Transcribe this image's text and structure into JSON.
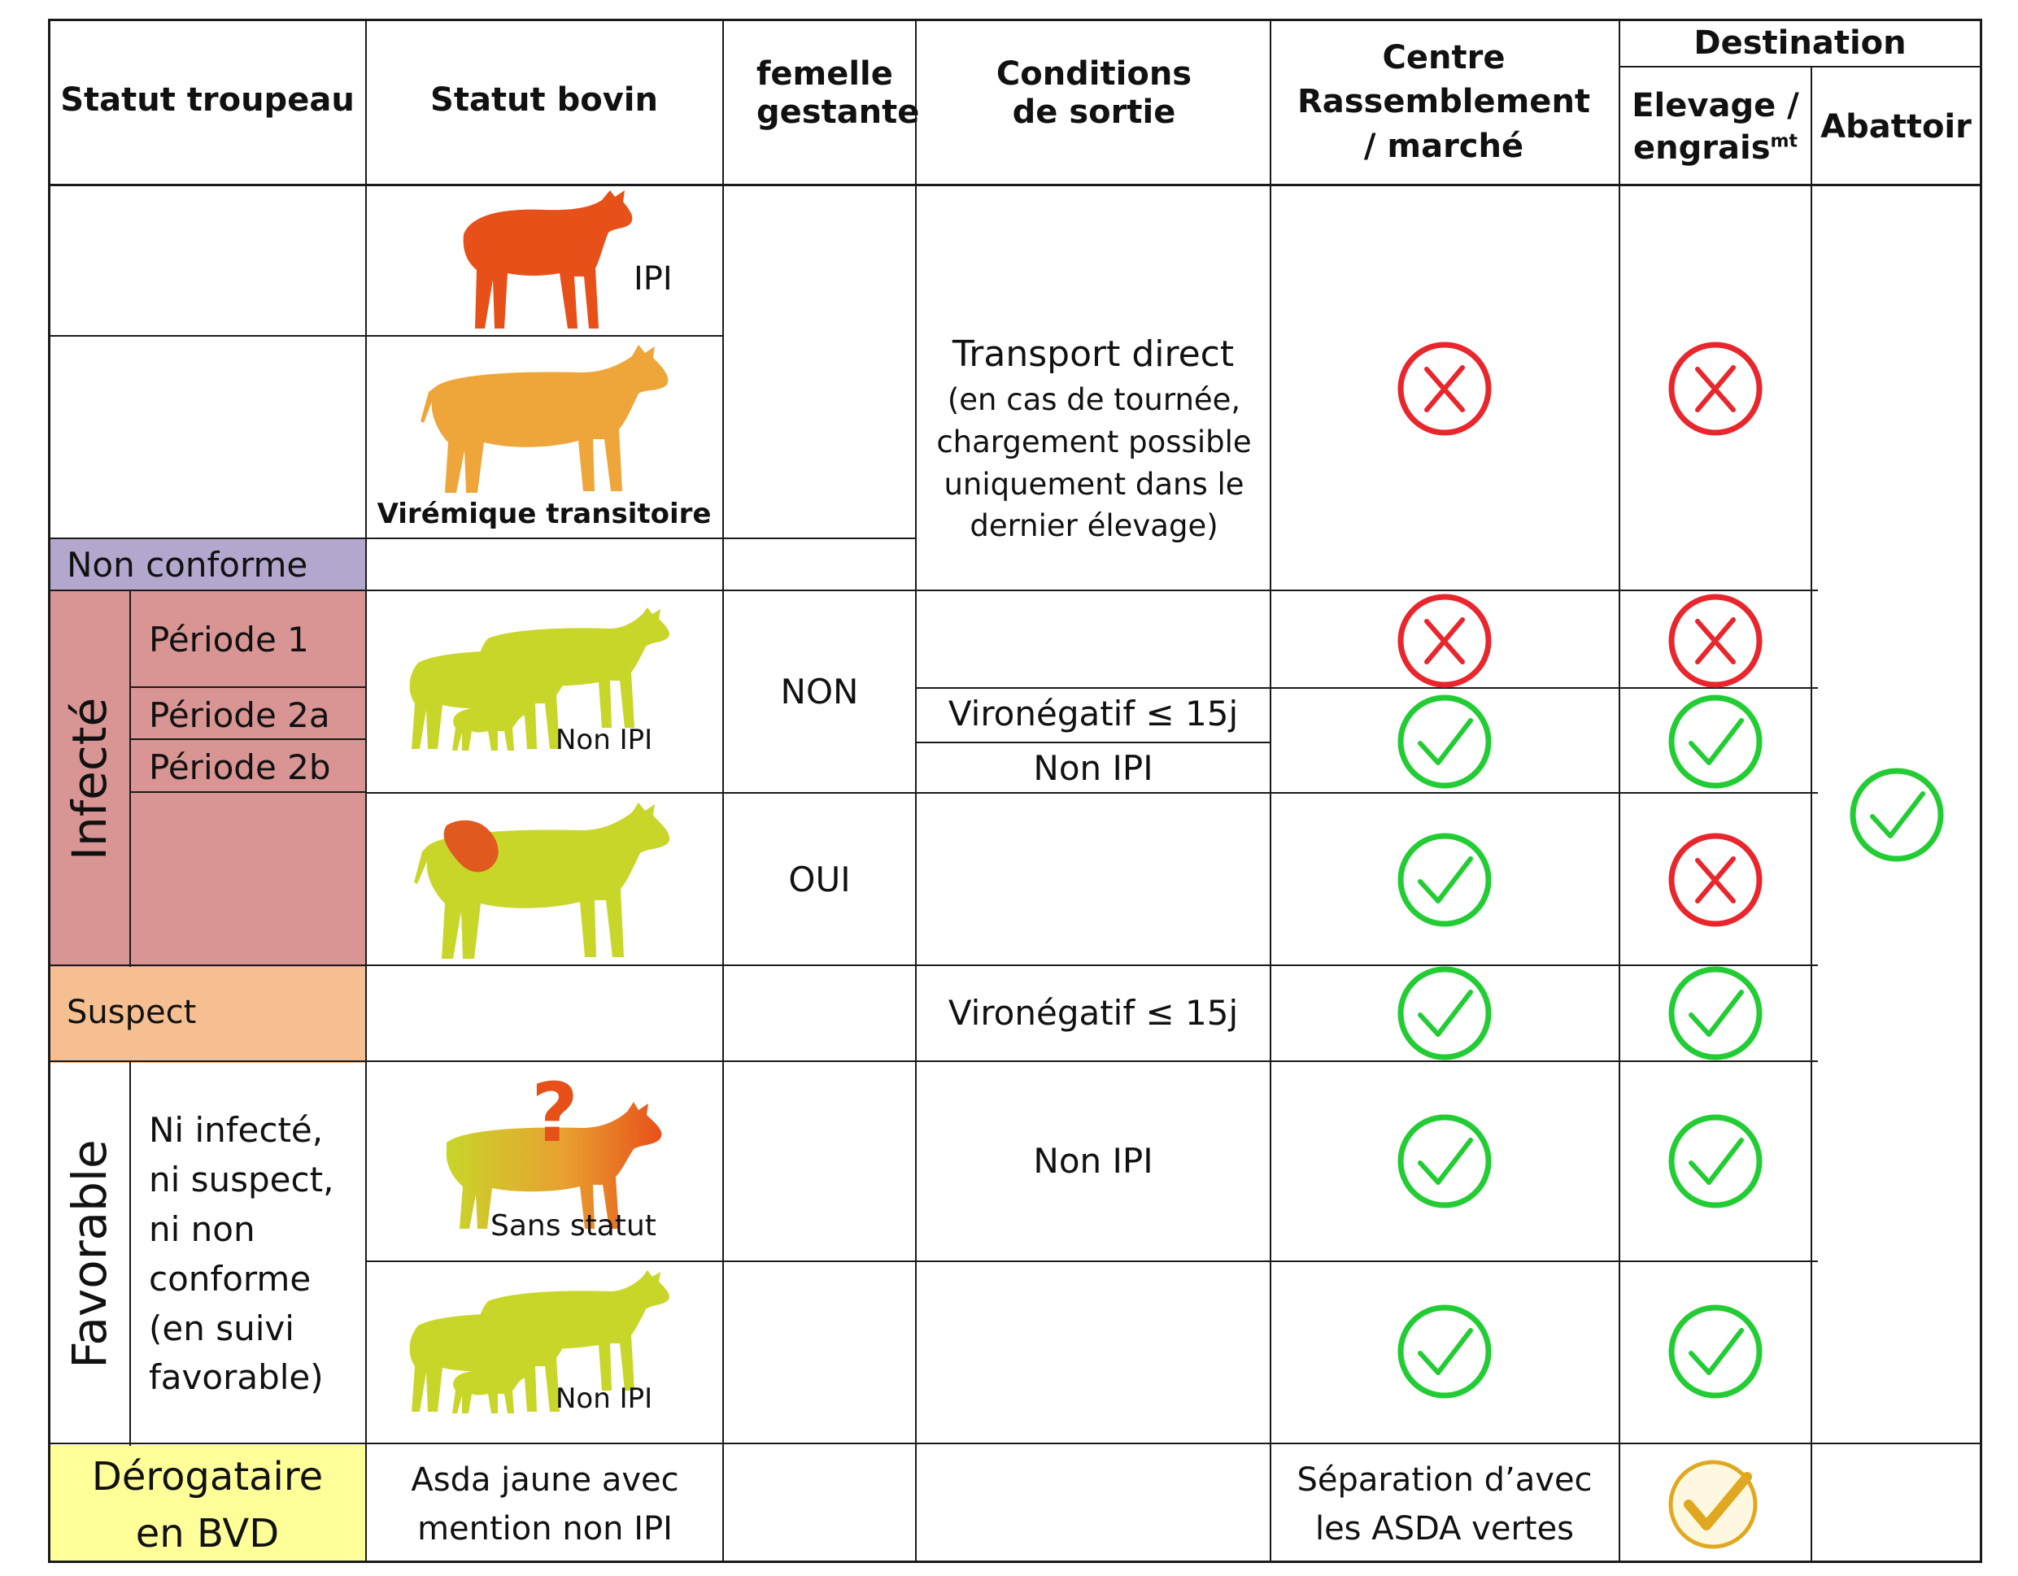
{
  "colors": {
    "non_conforme": "#b3a7cd",
    "infecte": "#d99594",
    "suspect": "#f6bf91",
    "derogataire": "#ffff99",
    "cross_red": "#e8262c",
    "check_green": "#22cc33",
    "check_gold": "#e0a820",
    "cow_ipi": "#e8501a",
    "cow_viremique": "#eea53a",
    "cow_yellow": "#c8d62a",
    "fetus": "#e05a20",
    "question_mark": "#e8501a"
  },
  "header": {
    "statut_troupeau": "Statut troupeau",
    "statut_bovin": "Statut bovin",
    "femelle_gestante": "femelle gestante",
    "conditions_sortie": "Conditions de sortie",
    "centre_rassemblement": "Centre Rassemblement / marché",
    "destination": "Destination",
    "elevage_base": "Elevage / engrais",
    "elevage_sup": "mt",
    "abattoir": "Abattoir"
  },
  "troupeau": {
    "non_conforme": "Non conforme",
    "infecte": "Infecté",
    "periode_1": "Période 1",
    "periode_2a": "Période 2a",
    "periode_2b": "Période 2b",
    "suspect": "Suspect",
    "favorable": "Favorable",
    "favorable_detail": "Ni infecté, ni suspect, ni non conforme (en suivi favorable)",
    "derogataire": "Dérogataire en BVD"
  },
  "bovin": {
    "ipi": "IPI",
    "viremique": "Virémique transitoire",
    "non_ipi_infecte": "Non IPI",
    "sans_statut": "Sans statut",
    "non_ipi_favorable": "Non IPI",
    "asda_jaune": "Asda jaune avec mention non IPI"
  },
  "gestante": {
    "non": "NON",
    "oui": "OUI"
  },
  "conditions": {
    "transport_direct": "Transport direct",
    "transport_note": "(en cas de tournée, chargement possible uniquement dans le dernier élevage)",
    "vironegatif_infecte": "Vironégatif ≤ 15j",
    "non_ipi_2b": "Non IPI",
    "vironegatif_suspect": "Vironégatif ≤ 15j",
    "non_ipi_favorable": "Non IPI"
  },
  "centre": {
    "separation": "Séparation d’avec les ASDA vertes"
  },
  "icons": {
    "ipi_cow": "calf-silhouette-icon",
    "viremique_cow": "cow-silhouette-icon",
    "herd": "cow-herd-icon",
    "pregnant": "pregnant-cow-icon",
    "unknown": "question-cow-icon",
    "cross": "cross-circle-icon",
    "check": "check-circle-icon",
    "gold_check": "gold-check-icon"
  },
  "verdicts": {
    "ipi_viremique_centre": "refuse",
    "ipi_viremique_elevage": "refuse",
    "periode1_centre": "refuse",
    "periode1_elevage": "refuse",
    "periode2_centre": "accept",
    "periode2_elevage": "accept",
    "gestante_centre": "accept",
    "gestante_elevage": "refuse",
    "suspect_centre": "accept",
    "suspect_elevage": "accept",
    "sans_statut_centre": "accept",
    "sans_statut_elevage": "accept",
    "favorable_nonipi_centre": "accept",
    "favorable_nonipi_elevage": "accept",
    "abattoir": "accept",
    "derogataire_elevage": "conditional"
  }
}
